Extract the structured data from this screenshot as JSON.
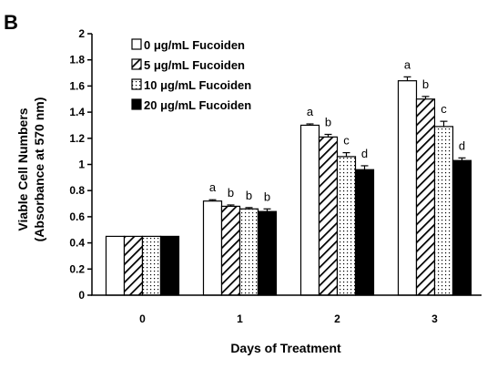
{
  "panel_label": "B",
  "chart_data": {
    "type": "bar",
    "title": "",
    "xlabel": "Days of Treatment",
    "ylabel_line1": "Viable Cell Numbers",
    "ylabel_line2": "(Absorbance at 570 nm)",
    "ylim": [
      0,
      2
    ],
    "yticks": [
      "0",
      "0.2",
      "0.4",
      "0.6",
      "0.8",
      "1",
      "1.2",
      "1.4",
      "1.6",
      "1.8",
      "2"
    ],
    "categories": [
      "0",
      "1",
      "2",
      "3"
    ],
    "grid": false,
    "legend_position": "top-left",
    "series": [
      {
        "name": "0 μg/mL Fucoiden",
        "pattern": "white",
        "values": [
          0.45,
          0.72,
          1.3,
          1.64
        ],
        "errors": [
          0,
          0.01,
          0.01,
          0.03
        ],
        "labels": [
          "",
          "a",
          "a",
          "a"
        ]
      },
      {
        "name": "5 μg/mL Fucoiden",
        "pattern": "diagonal",
        "values": [
          0.45,
          0.68,
          1.21,
          1.5
        ],
        "errors": [
          0,
          0.01,
          0.02,
          0.02
        ],
        "labels": [
          "",
          "b",
          "b",
          "b"
        ]
      },
      {
        "name": "10 μg/mL Fucoiden",
        "pattern": "dots",
        "values": [
          0.45,
          0.66,
          1.06,
          1.29
        ],
        "errors": [
          0,
          0.01,
          0.03,
          0.04
        ],
        "labels": [
          "",
          "b",
          "c",
          "c"
        ]
      },
      {
        "name": "20 μg/mL Fucoiden",
        "pattern": "black",
        "values": [
          0.45,
          0.64,
          0.96,
          1.03
        ],
        "errors": [
          0,
          0.02,
          0.03,
          0.02
        ],
        "labels": [
          "",
          "b",
          "d",
          "d"
        ]
      }
    ]
  }
}
